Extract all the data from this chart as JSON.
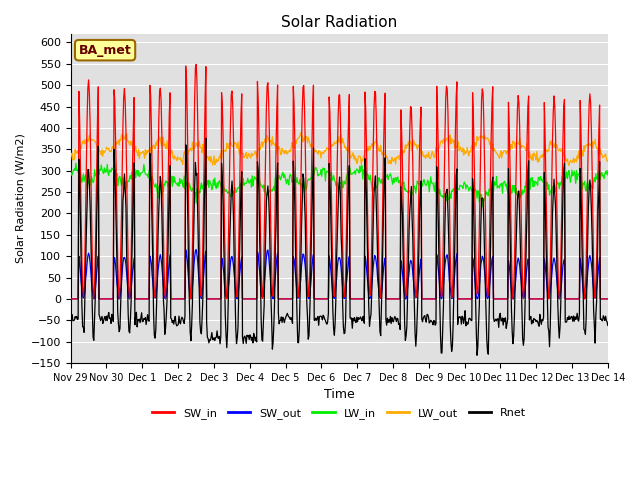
{
  "title": "Solar Radiation",
  "ylabel": "Solar Radiation (W/m2)",
  "xlabel": "Time",
  "ylim": [
    -150,
    620
  ],
  "yticks": [
    -150,
    -100,
    -50,
    0,
    50,
    100,
    150,
    200,
    250,
    300,
    350,
    400,
    450,
    500,
    550,
    600
  ],
  "background_color": "#e0e0e0",
  "grid_color": "#ffffff",
  "series_colors": {
    "SW_in": "#ff0000",
    "SW_out": "#0000ff",
    "LW_in": "#00ee00",
    "LW_out": "#ffaa00",
    "Rnet": "#000000"
  },
  "annotation_text": "BA_met",
  "annotation_bg": "#ffff99",
  "annotation_border": "#996600",
  "tick_labels": [
    "Nov 29",
    "Nov 30",
    "Dec 1",
    "Dec 2",
    "Dec 3",
    "Dec 4",
    "Dec 5",
    "Dec 6",
    "Dec 7",
    "Dec 8",
    "Dec 9",
    "Dec 10",
    "Dec 11",
    "Dec 12",
    "Dec 13",
    "Dec 14"
  ]
}
